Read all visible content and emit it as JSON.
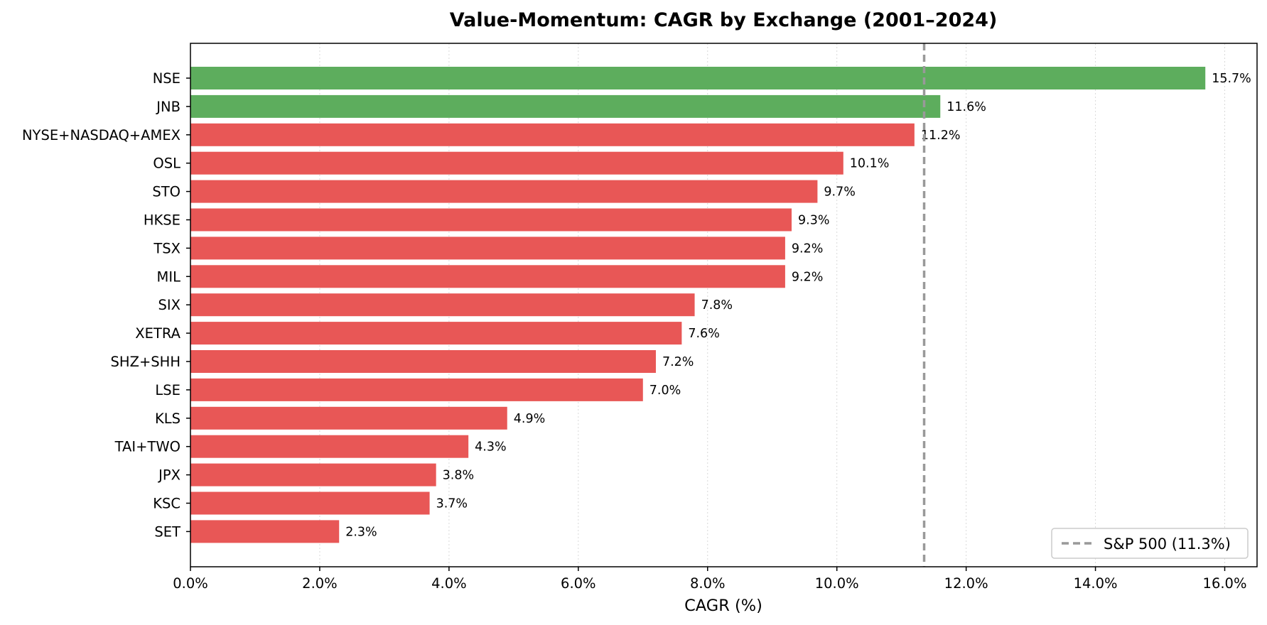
{
  "chart_data": {
    "type": "bar",
    "orientation": "horizontal",
    "title": "Value-Momentum: CAGR by Exchange (2001–2024)",
    "xlabel": "CAGR (%)",
    "ylabel": "",
    "xlim": [
      0,
      16.5
    ],
    "xticks": [
      0,
      2,
      4,
      6,
      8,
      10,
      12,
      14,
      16
    ],
    "xtick_labels": [
      "0.0%",
      "2.0%",
      "4.0%",
      "6.0%",
      "8.0%",
      "10.0%",
      "12.0%",
      "14.0%",
      "16.0%"
    ],
    "grid": "x-dotted",
    "categories": [
      "NSE",
      "JNB",
      "NYSE+NASDAQ+AMEX",
      "OSL",
      "STO",
      "HKSE",
      "TSX",
      "MIL",
      "SIX",
      "XETRA",
      "SHZ+SHH",
      "LSE",
      "KLS",
      "TAI+TWO",
      "JPX",
      "KSC",
      "SET"
    ],
    "values": [
      15.7,
      11.6,
      11.2,
      10.1,
      9.7,
      9.3,
      9.2,
      9.2,
      7.8,
      7.6,
      7.2,
      7.0,
      4.9,
      4.3,
      3.8,
      3.7,
      2.3
    ],
    "value_labels": [
      "15.7%",
      "11.6%",
      "11.2%",
      "10.1%",
      "9.7%",
      "9.3%",
      "9.2%",
      "9.2%",
      "7.8%",
      "7.6%",
      "7.2%",
      "7.0%",
      "4.9%",
      "4.3%",
      "3.8%",
      "3.7%",
      "2.3%"
    ],
    "bar_colors": [
      "#5dad5d",
      "#5dad5d",
      "#e85756",
      "#e85756",
      "#e85756",
      "#e85756",
      "#e85756",
      "#e85756",
      "#e85756",
      "#e85756",
      "#e85756",
      "#e85756",
      "#e85756",
      "#e85756",
      "#e85756",
      "#e85756",
      "#e85756"
    ],
    "reference_line": {
      "label": "S&P 500 (11.3%)",
      "value": 11.35,
      "style": "dashed",
      "color": "#999999"
    },
    "legend": {
      "placement": "lower-right",
      "entries": [
        "S&P 500 (11.3%)"
      ]
    }
  },
  "colors": {
    "above_benchmark": "#5dad5d",
    "below_benchmark": "#e85756",
    "benchmark_line": "#999999",
    "grid": "#d9d9d9"
  }
}
